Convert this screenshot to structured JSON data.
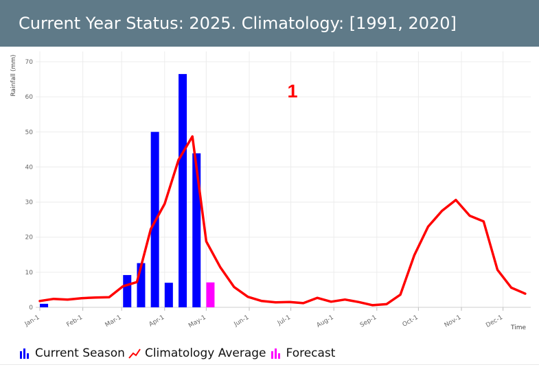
{
  "header": {
    "title": "Current Year Status: 2025. Climatology: [1991, 2020]"
  },
  "annotation": "1",
  "legend": {
    "current_season": "Current Season",
    "climatology_average": "Climatology Average",
    "forecast": "Forecast"
  },
  "chart_data": {
    "type": "bar",
    "title": "",
    "xlabel": "Time",
    "ylabel": "Rainfall (mm)",
    "ylim": [
      0,
      72
    ],
    "yticks": [
      0,
      10,
      20,
      30,
      40,
      50,
      60,
      70
    ],
    "grid": true,
    "legend_position": "bottom-left",
    "x_tick_labels": [
      "Jan-1",
      "Feb-1",
      "Mar-1",
      "Apr-1",
      "May-1",
      "Jun-1",
      "Jul-1",
      "Aug-1",
      "Sep-1",
      "Oct-1",
      "Nov-1",
      "Dec-1"
    ],
    "x_tick_days": [
      1,
      32,
      60,
      91,
      121,
      152,
      182,
      213,
      244,
      274,
      305,
      335
    ],
    "colors": {
      "current_season": "#0000ff",
      "climatology_average": "#ff0000",
      "forecast": "#ff00ff"
    },
    "series": [
      {
        "name": "Current Season",
        "kind": "bar",
        "points": [
          {
            "day": 4,
            "value": 1
          },
          {
            "day": 64,
            "value": 9.2
          },
          {
            "day": 74,
            "value": 12.6
          },
          {
            "day": 84,
            "value": 50
          },
          {
            "day": 94,
            "value": 7
          },
          {
            "day": 104,
            "value": 66.5
          },
          {
            "day": 114,
            "value": 43.9
          }
        ]
      },
      {
        "name": "Forecast",
        "kind": "bar",
        "points": [
          {
            "day": 124,
            "value": 7.1
          }
        ]
      },
      {
        "name": "Climatology Average",
        "kind": "line",
        "points": [
          {
            "day": 1,
            "value": 1.8
          },
          {
            "day": 11,
            "value": 2.4
          },
          {
            "day": 21,
            "value": 2.2
          },
          {
            "day": 31,
            "value": 2.6
          },
          {
            "day": 41,
            "value": 2.8
          },
          {
            "day": 51,
            "value": 2.9
          },
          {
            "day": 61,
            "value": 6
          },
          {
            "day": 71,
            "value": 7.2
          },
          {
            "day": 81,
            "value": 22.3
          },
          {
            "day": 91,
            "value": 29.5
          },
          {
            "day": 101,
            "value": 42
          },
          {
            "day": 111,
            "value": 48.7
          },
          {
            "day": 121,
            "value": 18.8
          },
          {
            "day": 131,
            "value": 11.5
          },
          {
            "day": 141,
            "value": 5.8
          },
          {
            "day": 151,
            "value": 3
          },
          {
            "day": 161,
            "value": 1.8
          },
          {
            "day": 171,
            "value": 1.4
          },
          {
            "day": 181,
            "value": 1.5
          },
          {
            "day": 191,
            "value": 1.2
          },
          {
            "day": 201,
            "value": 2.7
          },
          {
            "day": 211,
            "value": 1.6
          },
          {
            "day": 221,
            "value": 2.2
          },
          {
            "day": 231,
            "value": 1.5
          },
          {
            "day": 241,
            "value": 0.6
          },
          {
            "day": 251,
            "value": 0.9
          },
          {
            "day": 261,
            "value": 3.6
          },
          {
            "day": 271,
            "value": 14.8
          },
          {
            "day": 281,
            "value": 23
          },
          {
            "day": 291,
            "value": 27.5
          },
          {
            "day": 301,
            "value": 30.6
          },
          {
            "day": 311,
            "value": 26.1
          },
          {
            "day": 321,
            "value": 24.5
          },
          {
            "day": 331,
            "value": 10.7
          },
          {
            "day": 341,
            "value": 5.6
          },
          {
            "day": 351,
            "value": 3.9
          }
        ]
      }
    ]
  }
}
